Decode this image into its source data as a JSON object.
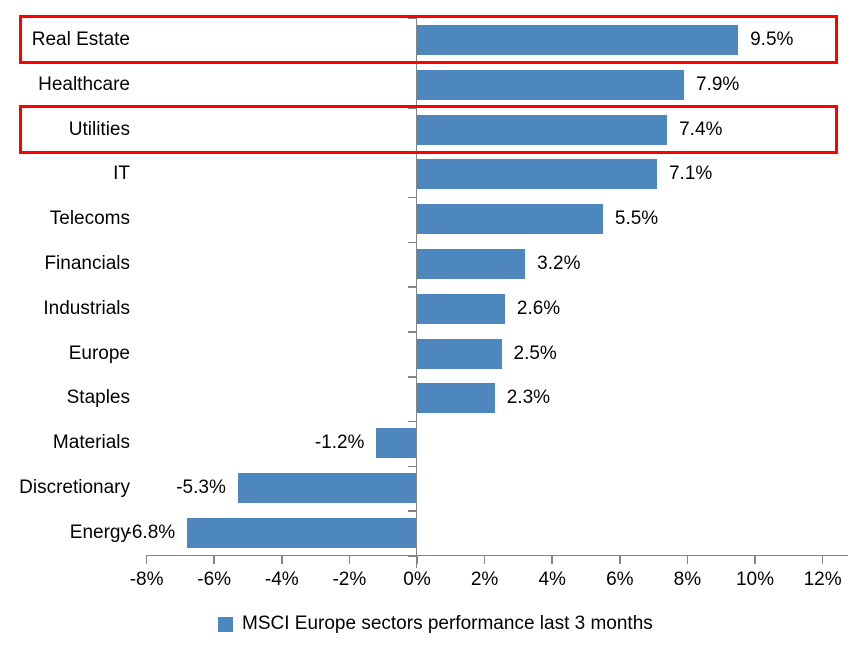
{
  "chart_data": {
    "type": "bar",
    "orientation": "horizontal",
    "title": "",
    "categories": [
      "Real Estate",
      "Healthcare",
      "Utilities",
      "IT",
      "Telecoms",
      "Financials",
      "Industrials",
      "Europe",
      "Staples",
      "Materials",
      "Discretionary",
      "Energy"
    ],
    "values": [
      9.5,
      7.9,
      7.4,
      7.1,
      5.5,
      3.2,
      2.6,
      2.5,
      2.3,
      -1.2,
      -5.3,
      -6.8
    ],
    "value_labels": [
      "9.5%",
      "7.9%",
      "7.4%",
      "7.1%",
      "5.5%",
      "3.2%",
      "2.6%",
      "2.5%",
      "2.3%",
      "-1.2%",
      "-5.3%",
      "-6.8%"
    ],
    "x_tick_labels": [
      "-8%",
      "-6%",
      "-4%",
      "-2%",
      "0%",
      "2%",
      "4%",
      "6%",
      "8%",
      "10%",
      "12%"
    ],
    "x_tick_values": [
      -8,
      -6,
      -4,
      -2,
      0,
      2,
      4,
      6,
      8,
      10,
      12
    ],
    "xlim": [
      -8,
      12
    ],
    "grid": "off",
    "legend_position": "bottom-center",
    "legend": "MSCI Europe sectors performance last 3 months",
    "highlighted_categories": [
      "Real Estate",
      "Utilities"
    ],
    "highlighted_indices": [
      0,
      2
    ],
    "colors": {
      "bar": "#4E86BE",
      "highlight_box": "#FF0000",
      "axis": "#848484",
      "text": "#000000",
      "background": "#FFFFFF"
    }
  }
}
